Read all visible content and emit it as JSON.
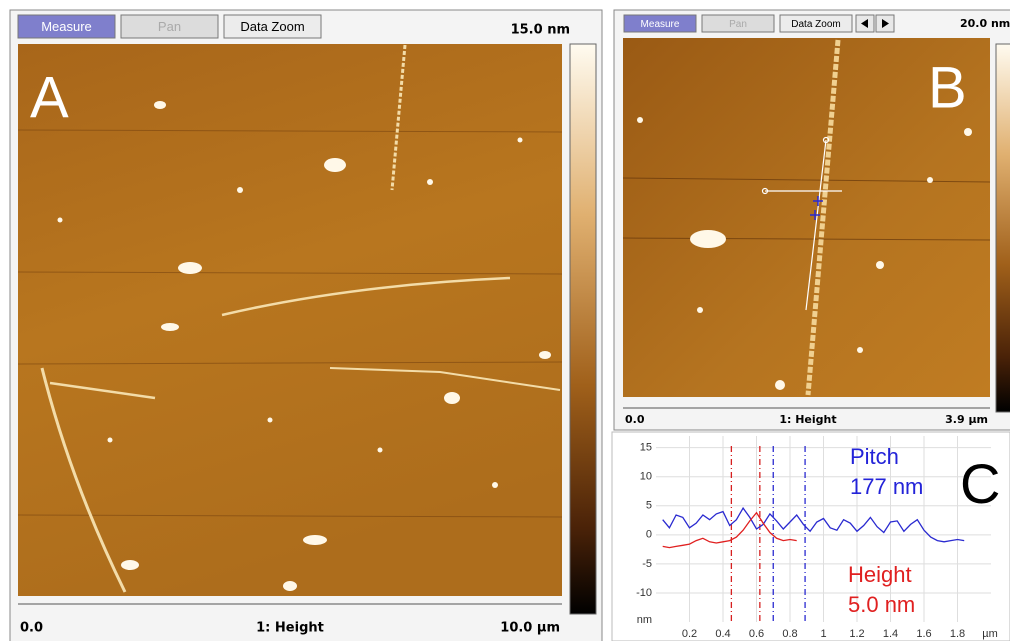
{
  "panel_a": {
    "toolbar": [
      "Measure",
      "Pan",
      "Data Zoom"
    ],
    "label": "A",
    "scale_max": "15.0 nm",
    "axis_start": "0.0",
    "axis_title": "1: Height",
    "axis_end": "10.0 µm"
  },
  "panel_b": {
    "toolbar": [
      "Measure",
      "Pan",
      "Data Zoom"
    ],
    "label": "B",
    "scale_max": "20.0 nm",
    "axis_start": "0.0",
    "axis_title": "1: Height",
    "axis_end": "3.9 µm"
  },
  "chart_data": {
    "type": "line",
    "label": "C",
    "xlabel": "µm",
    "ylabel": "nm",
    "xlim": [
      0,
      2
    ],
    "ylim": [
      -15,
      17
    ],
    "xticks": [
      0.2,
      0.4,
      0.6,
      0.8,
      1,
      1.2,
      1.4,
      1.6,
      1.8
    ],
    "yticks": [
      -10,
      -5,
      0,
      5,
      10,
      15
    ],
    "grid": true,
    "series": [
      {
        "color": "#2a2ad0",
        "x": [
          0.04,
          0.08,
          0.12,
          0.16,
          0.2,
          0.24,
          0.28,
          0.32,
          0.36,
          0.4,
          0.44,
          0.48,
          0.52,
          0.56,
          0.6,
          0.64,
          0.68,
          0.72,
          0.76,
          0.8,
          0.84,
          0.88,
          0.92,
          0.96,
          1,
          1.04,
          1.08,
          1.12,
          1.16,
          1.2,
          1.24,
          1.28,
          1.32,
          1.36,
          1.4,
          1.44,
          1.48,
          1.52,
          1.56,
          1.6,
          1.64,
          1.68,
          1.72,
          1.76,
          1.8,
          1.84
        ],
        "values": [
          2.6,
          1.2,
          3.4,
          3.0,
          1.2,
          2.0,
          3.4,
          2.6,
          3.6,
          4.0,
          1.6,
          2.6,
          4.6,
          3.0,
          1.0,
          1.8,
          3.6,
          2.4,
          1.0,
          2.2,
          3.4,
          1.8,
          0.6,
          2.2,
          2.8,
          1.2,
          0.8,
          2.6,
          2.0,
          0.6,
          1.6,
          3.0,
          1.4,
          0.4,
          2.2,
          2.4,
          0.6,
          1.8,
          2.6,
          0.8,
          -0.4,
          -1.0,
          -1.2,
          -1.0,
          -0.8,
          -1.0
        ]
      },
      {
        "color": "#e02020",
        "x": [
          0.04,
          0.08,
          0.12,
          0.16,
          0.2,
          0.24,
          0.28,
          0.32,
          0.36,
          0.4,
          0.44,
          0.48,
          0.52,
          0.56,
          0.6,
          0.64,
          0.68,
          0.72,
          0.76,
          0.8,
          0.84
        ],
        "values": [
          -2.0,
          -2.2,
          -2.0,
          -1.8,
          -1.6,
          -1.0,
          -0.6,
          -1.2,
          -1.4,
          -1.2,
          -1.0,
          -0.4,
          0.8,
          2.4,
          3.8,
          2.0,
          0.4,
          -0.6,
          -1.0,
          -0.8,
          -1.0
        ]
      }
    ],
    "cursors": [
      {
        "x": 0.45,
        "color": "#d62020"
      },
      {
        "x": 0.62,
        "color": "#d62020"
      },
      {
        "x": 0.7,
        "color": "#2a2ad0"
      },
      {
        "x": 0.89,
        "color": "#2a2ad0"
      }
    ],
    "annotations": [
      {
        "lines": [
          "Pitch",
          "177 nm"
        ],
        "color": "#2323d8"
      },
      {
        "lines": [
          "Height",
          "5.0 nm"
        ],
        "color": "#e02020"
      }
    ]
  }
}
